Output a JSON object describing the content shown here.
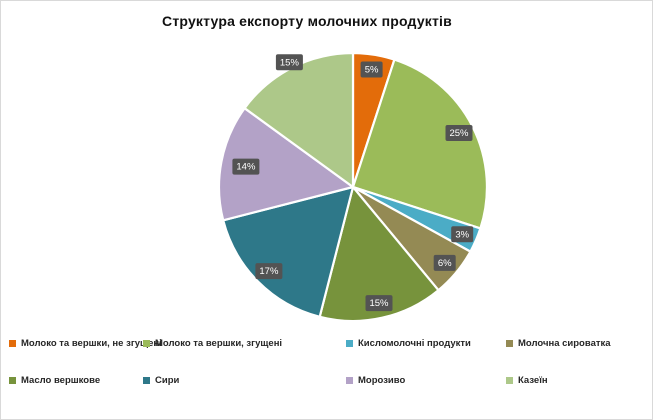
{
  "chart_data": {
    "type": "pie",
    "title": "Структура експорту молочних продуктів",
    "legend_position": "bottom",
    "data_labels": "percent",
    "start_angle_deg": 0,
    "direction": "clockwise",
    "total": 100,
    "slices": [
      {
        "label": "Молоко та вершки, не згущені",
        "value": 5,
        "percent_label": "5%",
        "color": "#E36C0A"
      },
      {
        "label": "Молоко та вершки, згущені",
        "value": 25,
        "percent_label": "25%",
        "color": "#9BBB59"
      },
      {
        "label": "Кисломолочні продукти",
        "value": 3,
        "percent_label": "3%",
        "color": "#4BACC6"
      },
      {
        "label": "Молочна сироватка",
        "value": 6,
        "percent_label": "6%",
        "color": "#948A54"
      },
      {
        "label": "Масло вершкове",
        "value": 15,
        "percent_label": "15%",
        "color": "#77933C"
      },
      {
        "label": "Сири",
        "value": 17,
        "percent_label": "17%",
        "color": "#2E7889"
      },
      {
        "label": "Морозиво",
        "value": 14,
        "percent_label": "14%",
        "color": "#B3A2C7"
      },
      {
        "label": "Казеїн",
        "value": 15,
        "percent_label": "15%",
        "color": "#ADC889"
      }
    ],
    "label_box": {
      "bg": "#535353",
      "text_color": "#FFFFFF"
    }
  }
}
